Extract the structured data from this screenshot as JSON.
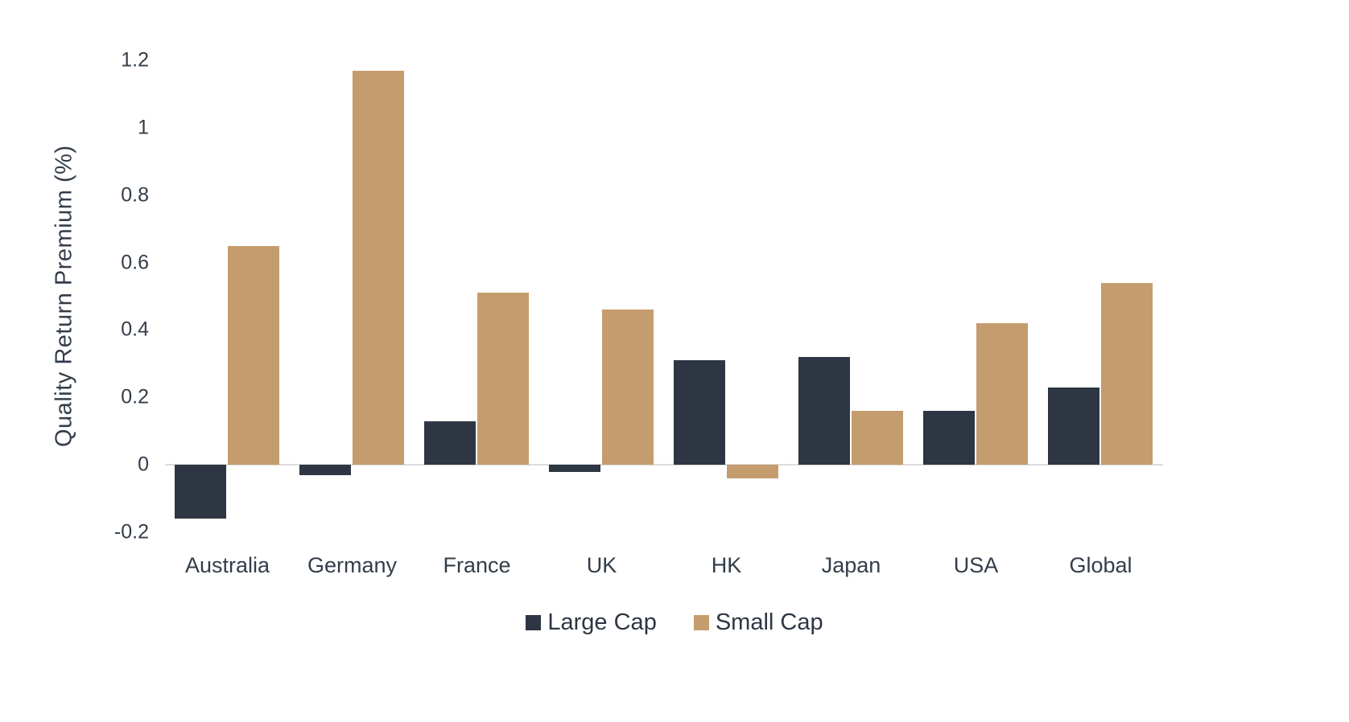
{
  "chart_data": {
    "type": "bar",
    "categories": [
      "Australia",
      "Germany",
      "France",
      "UK",
      "HK",
      "Japan",
      "USA",
      "Global"
    ],
    "series": [
      {
        "name": "Large Cap",
        "color": "#2d3642",
        "values": [
          -0.16,
          -0.03,
          0.13,
          -0.02,
          0.31,
          0.32,
          0.16,
          0.23
        ]
      },
      {
        "name": "Small Cap",
        "color": "#c59c6e",
        "values": [
          0.65,
          1.17,
          0.51,
          0.46,
          -0.04,
          0.16,
          0.42,
          0.54
        ]
      }
    ],
    "title": "",
    "xlabel": "",
    "ylabel": "Quality Return Premium (%)",
    "ylim": [
      -0.2,
      1.2
    ],
    "yticks": [
      1.2,
      1,
      0.8,
      0.6,
      0.4,
      0.2,
      0,
      -0.2
    ],
    "grid": false,
    "legend_position": "bottom",
    "colors": {
      "background": "#ffffff",
      "baseline": "#dcdcdc",
      "text": "#333d49"
    }
  }
}
